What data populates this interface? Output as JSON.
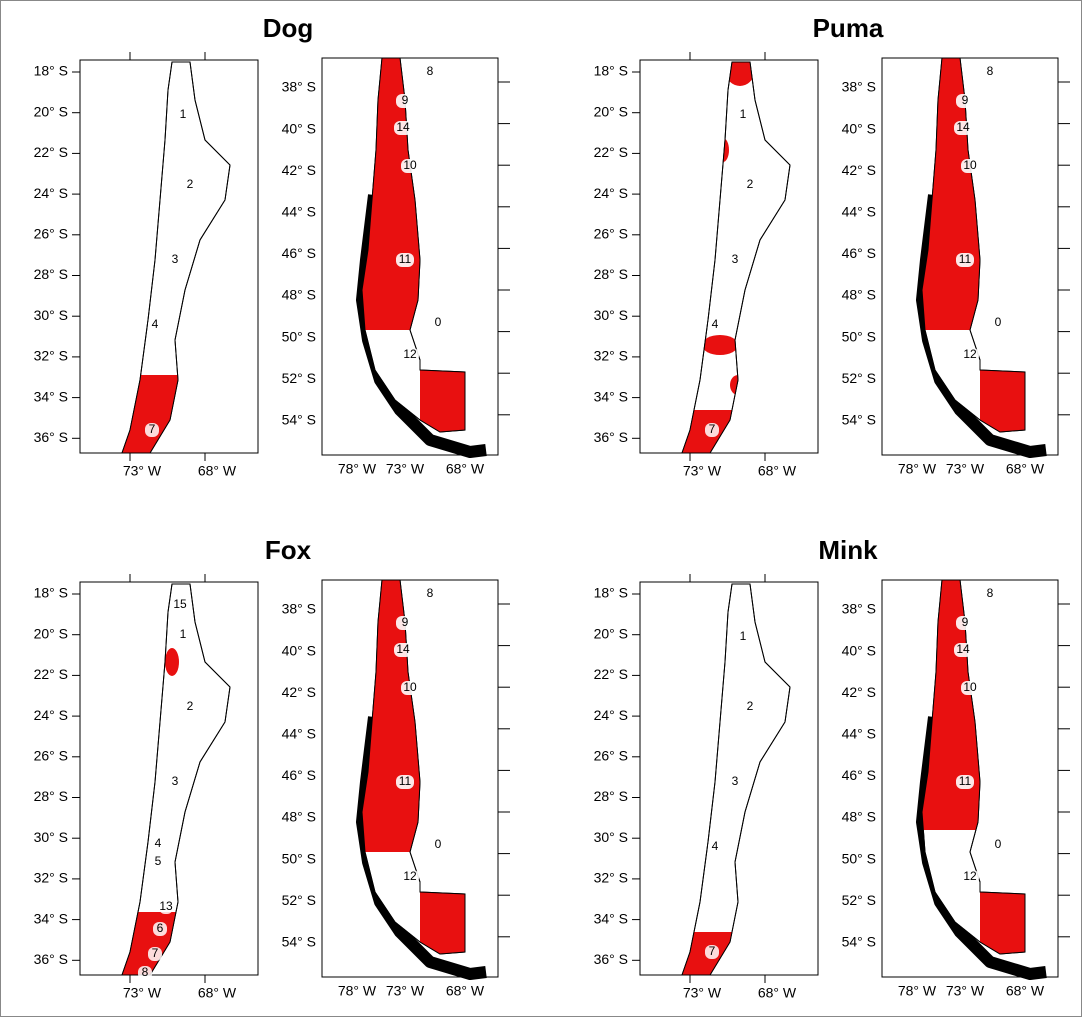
{
  "axes": {
    "north": {
      "yticks": [
        "18° S",
        "20° S",
        "22° S",
        "24° S",
        "26° S",
        "28° S",
        "30° S",
        "32° S",
        "34° S",
        "36° S"
      ],
      "xticks": [
        "73° W",
        "68° W"
      ]
    },
    "south": {
      "yticks": [
        "38° S",
        "40° S",
        "42° S",
        "44° S",
        "46° S",
        "48° S",
        "50° S",
        "52° S",
        "54° S"
      ],
      "xticks": [
        "78° W",
        "73° W",
        "68° W"
      ]
    }
  },
  "panels": [
    {
      "title": "Dog",
      "north_regions": [
        "1",
        "2",
        "3",
        "4",
        "7"
      ],
      "south_regions": [
        "8",
        "9",
        "14",
        "10",
        "11",
        "0",
        "12"
      ]
    },
    {
      "title": "Puma",
      "north_regions": [
        "1",
        "2",
        "3",
        "4",
        "7"
      ],
      "south_regions": [
        "8",
        "9",
        "14",
        "10",
        "11",
        "0",
        "12"
      ]
    },
    {
      "title": "Fox",
      "north_regions": [
        "15",
        "1",
        "2",
        "3",
        "4",
        "5",
        "13",
        "6",
        "7",
        "8"
      ],
      "south_regions": [
        "8",
        "9",
        "14",
        "10",
        "11",
        "0",
        "12"
      ]
    },
    {
      "title": "Mink",
      "north_regions": [
        "1",
        "2",
        "3",
        "4",
        "7"
      ],
      "south_regions": [
        "8",
        "9",
        "14",
        "10",
        "11",
        "0",
        "12"
      ]
    }
  ]
}
